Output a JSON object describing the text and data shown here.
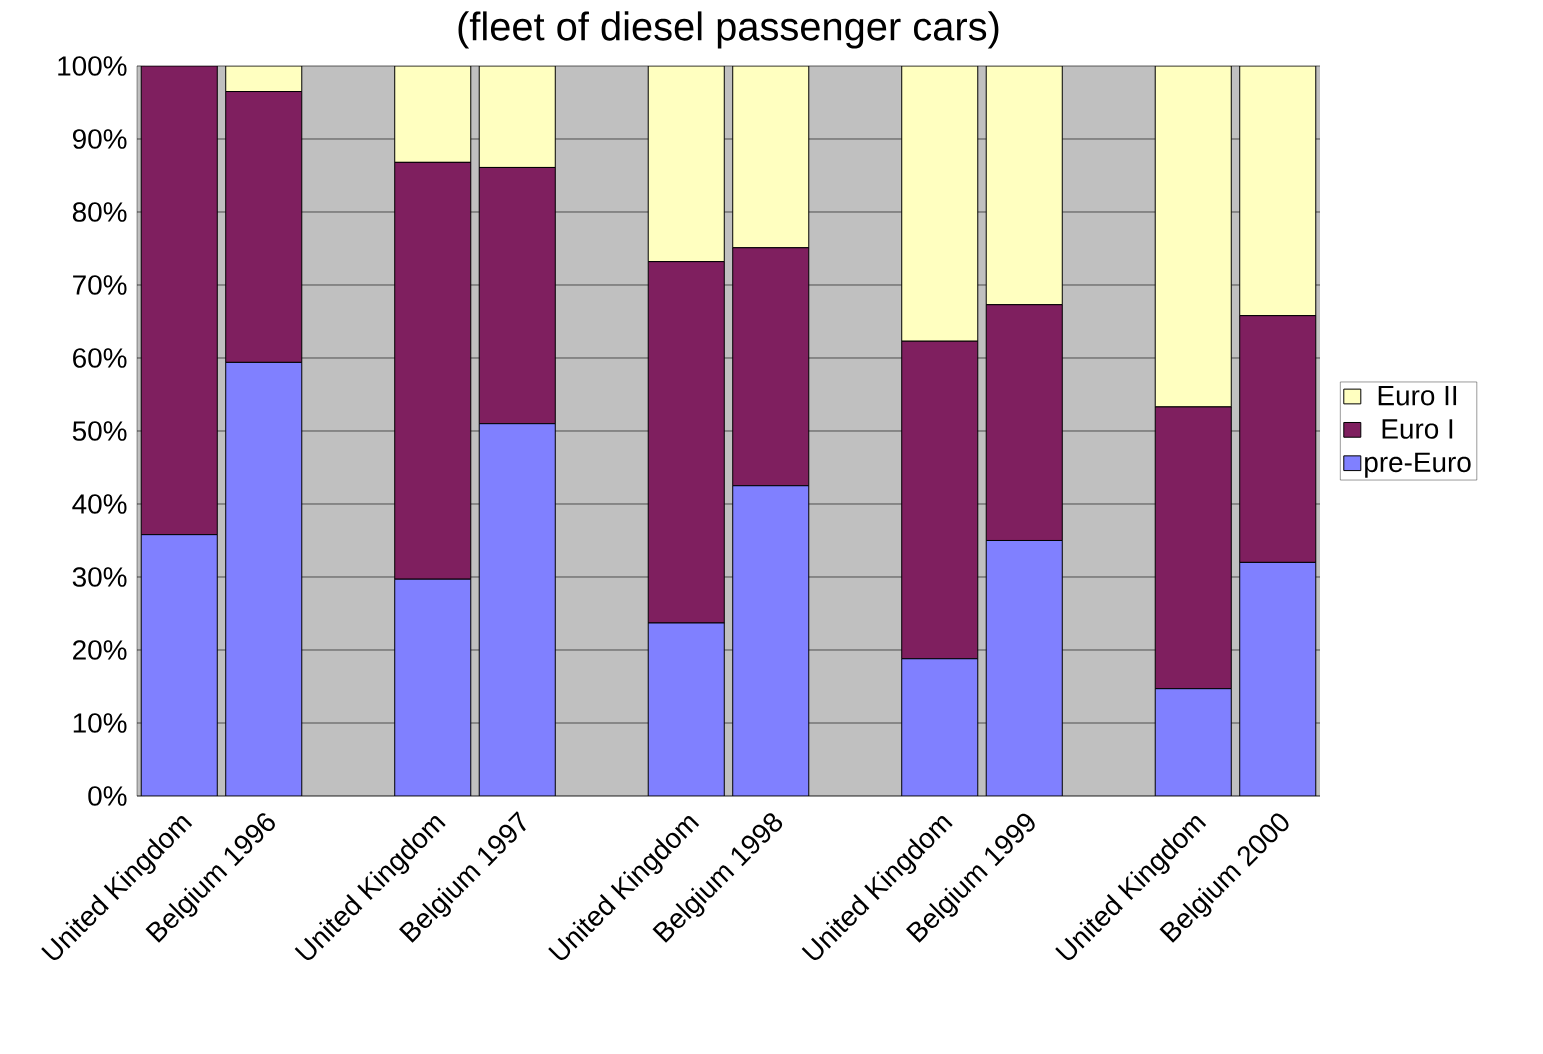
{
  "chart_data": {
    "type": "bar",
    "stacked": true,
    "title": "(fleet of diesel passenger cars)",
    "categories": [
      "United Kingdom",
      "Belgium 1996",
      null,
      "United Kingdom",
      "Belgium 1997",
      null,
      "United Kingdom",
      "Belgium 1998",
      null,
      "United Kingdom",
      "Belgium 1999",
      null,
      "United Kingdom",
      "Belgium 2000"
    ],
    "series": [
      {
        "name": "pre-Euro",
        "color": "#8080ff",
        "values": [
          35.8,
          59.4,
          null,
          29.7,
          51.0,
          null,
          23.7,
          42.5,
          null,
          18.8,
          35.0,
          null,
          14.7,
          32.0
        ]
      },
      {
        "name": "Euro I",
        "color": "#7f1f5f",
        "values": [
          64.2,
          37.1,
          null,
          57.1,
          35.1,
          null,
          49.5,
          32.6,
          null,
          43.5,
          32.3,
          null,
          38.6,
          33.8
        ]
      },
      {
        "name": "Euro II",
        "color": "#ffffc0",
        "values": [
          0,
          3.5,
          null,
          13.2,
          13.9,
          null,
          26.8,
          24.9,
          null,
          37.7,
          32.7,
          null,
          46.7,
          34.2
        ]
      }
    ],
    "ylim": [
      0,
      100
    ],
    "yticks": [
      {
        "value": 0,
        "label": "0%"
      },
      {
        "value": 10,
        "label": "10%"
      },
      {
        "value": 20,
        "label": "20%"
      },
      {
        "value": 30,
        "label": "30%"
      },
      {
        "value": 40,
        "label": "40%"
      },
      {
        "value": 50,
        "label": "50%"
      },
      {
        "value": 60,
        "label": "60%"
      },
      {
        "value": 70,
        "label": "70%"
      },
      {
        "value": 80,
        "label": "80%"
      },
      {
        "value": 90,
        "label": "90%"
      },
      {
        "value": 100,
        "label": "100%"
      }
    ],
    "grid": "y",
    "legend": "right"
  }
}
